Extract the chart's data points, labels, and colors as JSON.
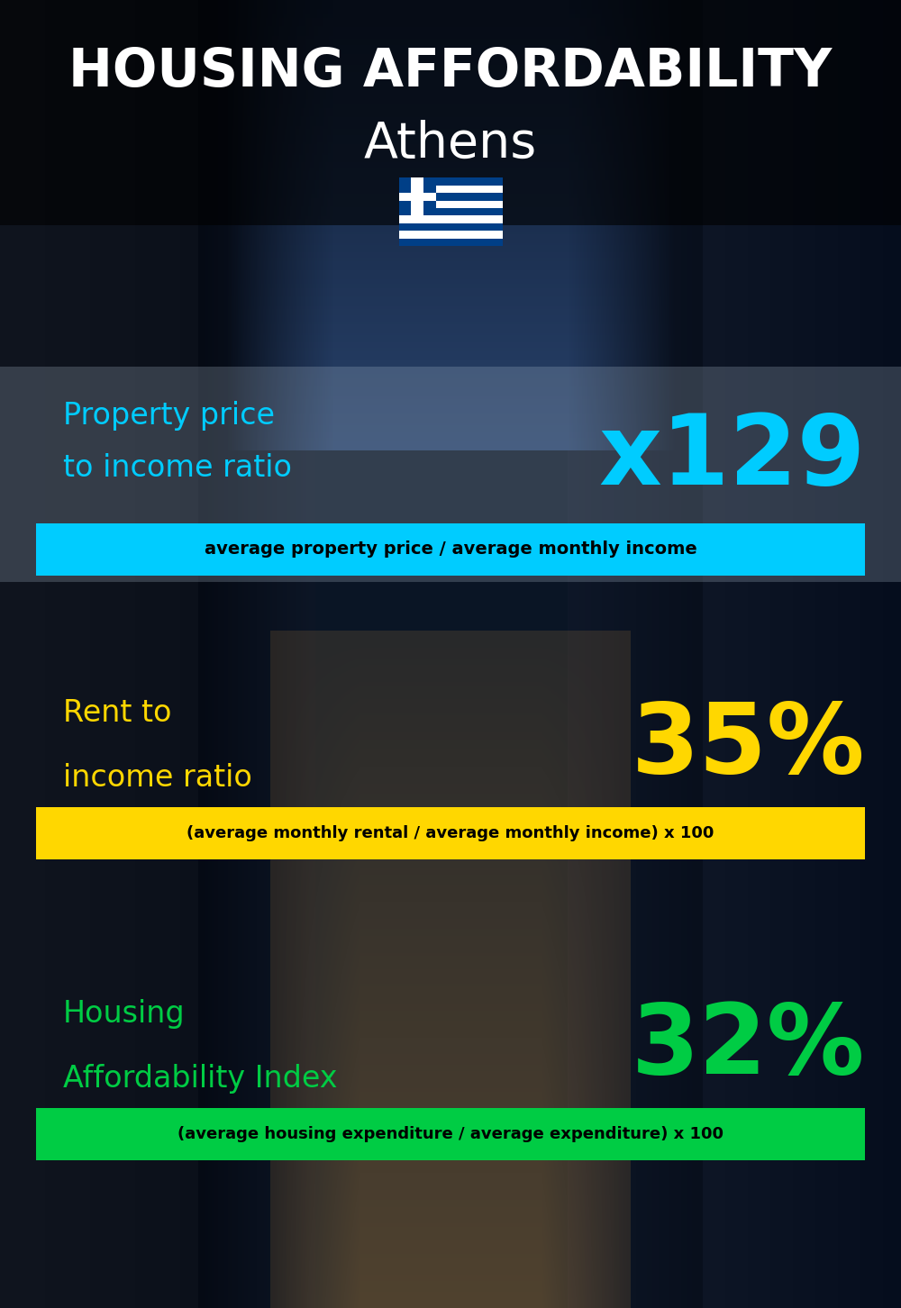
{
  "title_line1": "HOUSING AFFORDABILITY",
  "title_line2": "Athens",
  "bg_color": "#0a1525",
  "section1_label_line1": "Property price",
  "section1_label_line2": "to income ratio",
  "section1_value": "x129",
  "section1_label_color": "#00ccff",
  "section1_value_color": "#00ccff",
  "section1_bar_text": "average property price / average monthly income",
  "section1_bar_color": "#00ccff",
  "section2_label_line1": "Rent to",
  "section2_label_line2": "income ratio",
  "section2_value": "35%",
  "section2_label_color": "#ffd700",
  "section2_value_color": "#ffd700",
  "section2_bar_text": "(average monthly rental / average monthly income) x 100",
  "section2_bar_color": "#ffd700",
  "section3_label_line1": "Housing",
  "section3_label_line2": "Affordability Index",
  "section3_value": "32%",
  "section3_label_color": "#00cc44",
  "section3_value_color": "#00cc44",
  "section3_bar_text": "(average housing expenditure / average expenditure) x 100",
  "section3_bar_color": "#00cc44",
  "title_color": "#ffffff",
  "subtitle_color": "#ffffff",
  "flag_blue": "#003f87",
  "flag_white": "#ffffff"
}
